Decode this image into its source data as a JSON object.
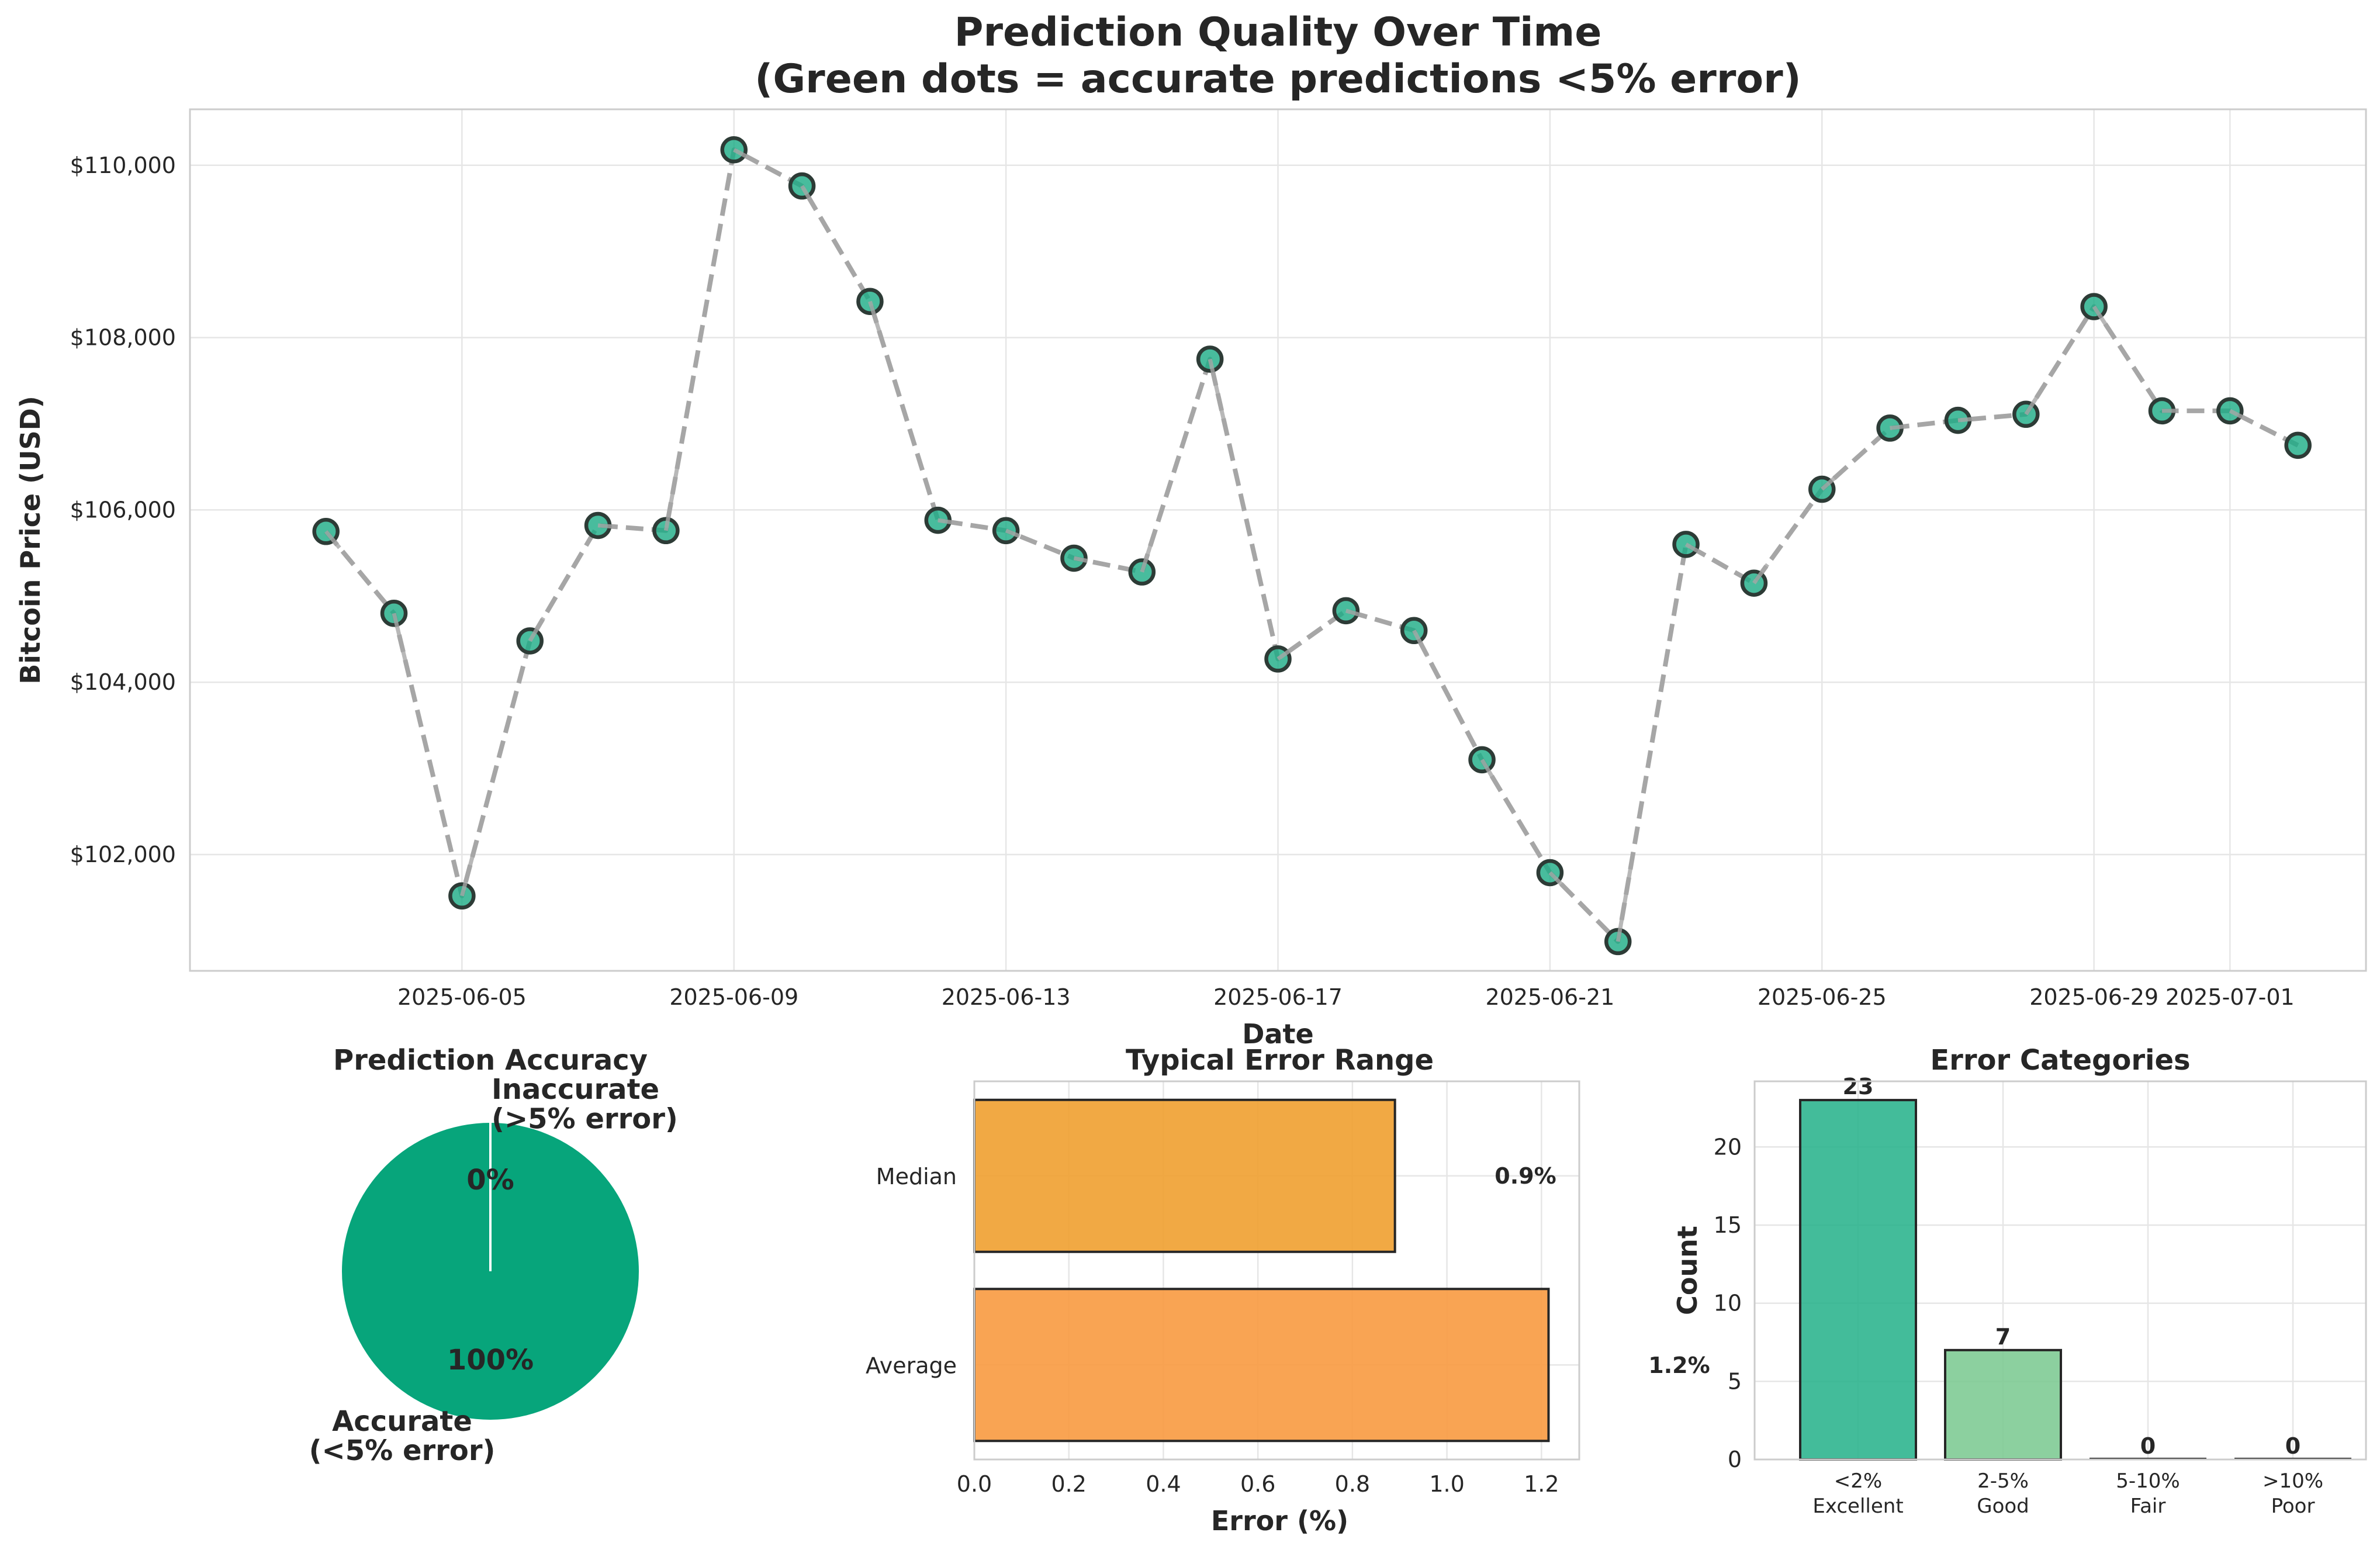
{
  "chart_data": [
    {
      "type": "line",
      "title": "Prediction Quality Over Time\n(Green dots = accurate predictions <5% error)",
      "xlabel": "Date",
      "ylabel": "Bitcoin Price (USD)",
      "x_ticks": [
        "2025-06-05",
        "2025-06-09",
        "2025-06-13",
        "2025-06-17",
        "2025-06-21",
        "2025-06-25",
        "2025-06-29",
        "2025-07-01"
      ],
      "y_ticks": [
        "$102,000",
        "$104,000",
        "$106,000",
        "$108,000",
        "$110,000"
      ],
      "ylim": [
        100650,
        110650
      ],
      "xlim": [
        "2025-06-01",
        "2025-07-03"
      ],
      "grid": true,
      "series": [
        {
          "color": "#1aab85",
          "x": [
            "2025-06-03",
            "2025-06-04",
            "2025-06-05",
            "2025-06-06",
            "2025-06-07",
            "2025-06-08",
            "2025-06-09",
            "2025-06-10",
            "2025-06-11",
            "2025-06-12",
            "2025-06-13",
            "2025-06-14",
            "2025-06-15",
            "2025-06-16",
            "2025-06-17",
            "2025-06-18",
            "2025-06-19",
            "2025-06-20",
            "2025-06-21",
            "2025-06-22",
            "2025-06-23",
            "2025-06-24",
            "2025-06-25",
            "2025-06-26",
            "2025-06-27",
            "2025-06-28",
            "2025-06-29",
            "2025-06-30",
            "2025-07-01",
            "2025-07-02"
          ],
          "values": [
            105750,
            104800,
            101520,
            104480,
            105820,
            105760,
            110180,
            109760,
            108420,
            105880,
            105760,
            105440,
            105280,
            107750,
            104270,
            104830,
            104600,
            103100,
            101790,
            100990,
            105600,
            105150,
            106240,
            106950,
            107040,
            107110,
            108360,
            107150,
            107150,
            106750
          ]
        }
      ]
    },
    {
      "type": "pie",
      "title": "Prediction Accuracy",
      "labels": [
        "Inaccurate\n(>5% error)",
        "Accurate\n(<5% error)"
      ],
      "percent_labels": [
        "0%",
        "100%"
      ],
      "values": [
        0,
        100
      ],
      "colors": [
        "#e03c31",
        "#07a57b"
      ]
    },
    {
      "type": "bar",
      "orientation": "horizontal",
      "title": "Typical Error Range",
      "xlabel": "Error (%)",
      "categories": [
        "Median",
        "Average"
      ],
      "values": [
        0.9,
        1.2
      ],
      "plotted_values": [
        0.89,
        1.215
      ],
      "value_labels": [
        "0.9%",
        "1.2%"
      ],
      "colors": [
        "#f0a030",
        "#f89a40"
      ],
      "x_ticks": [
        "0.0",
        "0.2",
        "0.4",
        "0.6",
        "0.8",
        "1.0",
        "1.2"
      ],
      "xlim": [
        0,
        1.28
      ],
      "grid": true
    },
    {
      "type": "bar",
      "title": "Error Categories",
      "ylabel": "Count",
      "categories": [
        "<2%\nExcellent",
        "2-5%\nGood",
        "5-10%\nFair",
        ">10%\nPoor"
      ],
      "values": [
        23,
        7,
        0,
        0
      ],
      "colors": [
        "#22b088",
        "#78c88e",
        "#ffd060",
        "#ff8a50"
      ],
      "y_ticks": [
        "0",
        "5",
        "10",
        "15",
        "20"
      ],
      "ylim": [
        0,
        24.2
      ],
      "grid": true
    }
  ]
}
